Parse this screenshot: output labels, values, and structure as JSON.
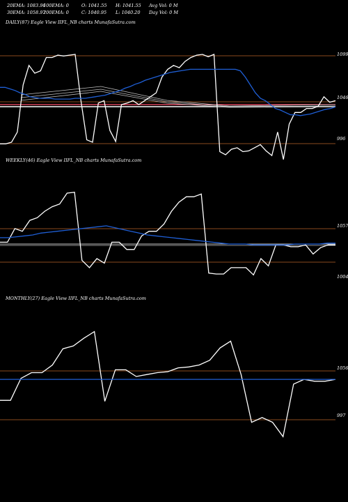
{
  "header": {
    "ema20": "20EMA: 1083.96",
    "ema100": "100EMA: 0",
    "open": "O: 1041.55",
    "high": "H: 1041.55",
    "avgvol": "Avg Vol: 0  M",
    "ema30": "30EMA: 1058.97",
    "ema200": "200EMA: 0",
    "close": "C: 1040.95",
    "low": "L: 1040.20",
    "dayvol": "Day Vol: 0  M"
  },
  "chart_data": [
    {
      "type": "line",
      "title": "DAILY(87) Eagle  View  IIFL_NB charts MunafaSutra.com",
      "ylabels": [
        "1099",
        "1046",
        "996"
      ],
      "colors": {
        "price": "#ffffff",
        "ema_blue": "#1f5fd6",
        "level_lines": "#8a4a1e"
      },
      "series": [
        {
          "values": [
            985,
            985,
            987,
            1000,
            1060,
            1085,
            1075,
            1078,
            1095,
            1095,
            1098,
            1097,
            1098,
            1099,
            1040,
            990,
            987,
            1037,
            1040,
            1002,
            988,
            1035,
            1037,
            1040,
            1035,
            1040,
            1045,
            1050,
            1070,
            1080,
            1085,
            1082,
            1090,
            1095,
            1098,
            1099,
            1096,
            1099,
            975,
            971,
            978,
            980,
            975,
            976,
            980,
            984,
            976,
            970,
            1000,
            965,
            1010,
            1025,
            1025,
            1030,
            1030,
            1033,
            1045,
            1038,
            1040
          ]
        },
        {
          "values": [
            1057,
            1057,
            1055,
            1053,
            1050,
            1048,
            1045,
            1044,
            1043,
            1043,
            1043,
            1042,
            1042,
            1042,
            1042,
            1043,
            1043,
            1043,
            1044,
            1045,
            1046,
            1047,
            1049,
            1051,
            1053,
            1056,
            1058,
            1061,
            1063,
            1066,
            1068,
            1070,
            1072,
            1074,
            1076,
            1077,
            1078,
            1079,
            1080,
            1080,
            1080,
            1080,
            1080,
            1080,
            1080,
            1080,
            1080,
            1080,
            1078,
            1070,
            1060,
            1050,
            1043,
            1040,
            1035,
            1030,
            1028,
            1025,
            1022,
            1022,
            1021,
            1022,
            1023,
            1025,
            1027,
            1029,
            1030,
            1032
          ]
        }
      ]
    },
    {
      "type": "line",
      "title": "WEEKLY(46) Eagle  View  IIFL_NB charts MunafaSutra.com",
      "ylabels": [
        "1057",
        "1004"
      ],
      "series": [
        {
          "values": [
            1038,
            1038,
            1053,
            1050,
            1062,
            1065,
            1072,
            1077,
            1080,
            1092,
            1093,
            1018,
            1010,
            1020,
            1015,
            1038,
            1038,
            1030,
            1030,
            1045,
            1050,
            1050,
            1058,
            1072,
            1082,
            1088,
            1088,
            1091,
            1004,
            1003,
            1003,
            1010,
            1010,
            1010,
            1002,
            1020,
            1012,
            1035,
            1035,
            1033,
            1033,
            1035,
            1025,
            1032,
            1035,
            1035
          ]
        },
        {
          "values": [
            1043,
            1043,
            1044,
            1045,
            1046,
            1048,
            1049,
            1050,
            1051,
            1052,
            1053,
            1054,
            1055,
            1056,
            1054,
            1052,
            1050,
            1048,
            1046,
            1045,
            1044,
            1043,
            1042,
            1041,
            1040,
            1039,
            1038,
            1037,
            1036,
            1036,
            1036,
            1035,
            1035,
            1035,
            1035,
            1035,
            1036,
            1036,
            1036,
            1036,
            1037,
            1037
          ]
        }
      ]
    },
    {
      "type": "line",
      "title": "MONTHLY(27) Eagle  View  IIFL_NB charts MunafaSutra.com",
      "ylabels": [
        "1056",
        "997"
      ],
      "series": [
        {
          "values": [
            1023,
            1023,
            1046,
            1052,
            1052,
            1060,
            1077,
            1080,
            1088,
            1095,
            1022,
            1055,
            1055,
            1048,
            1050,
            1052,
            1053,
            1057,
            1058,
            1060,
            1065,
            1078,
            1085,
            1050,
            1000,
            1005,
            1000,
            985,
            1040,
            1045,
            1043,
            1043,
            1045
          ]
        },
        {
          "values": [
            1045,
            1045,
            1045,
            1045,
            1045,
            1045,
            1045,
            1045,
            1045,
            1045,
            1045
          ]
        }
      ]
    }
  ]
}
